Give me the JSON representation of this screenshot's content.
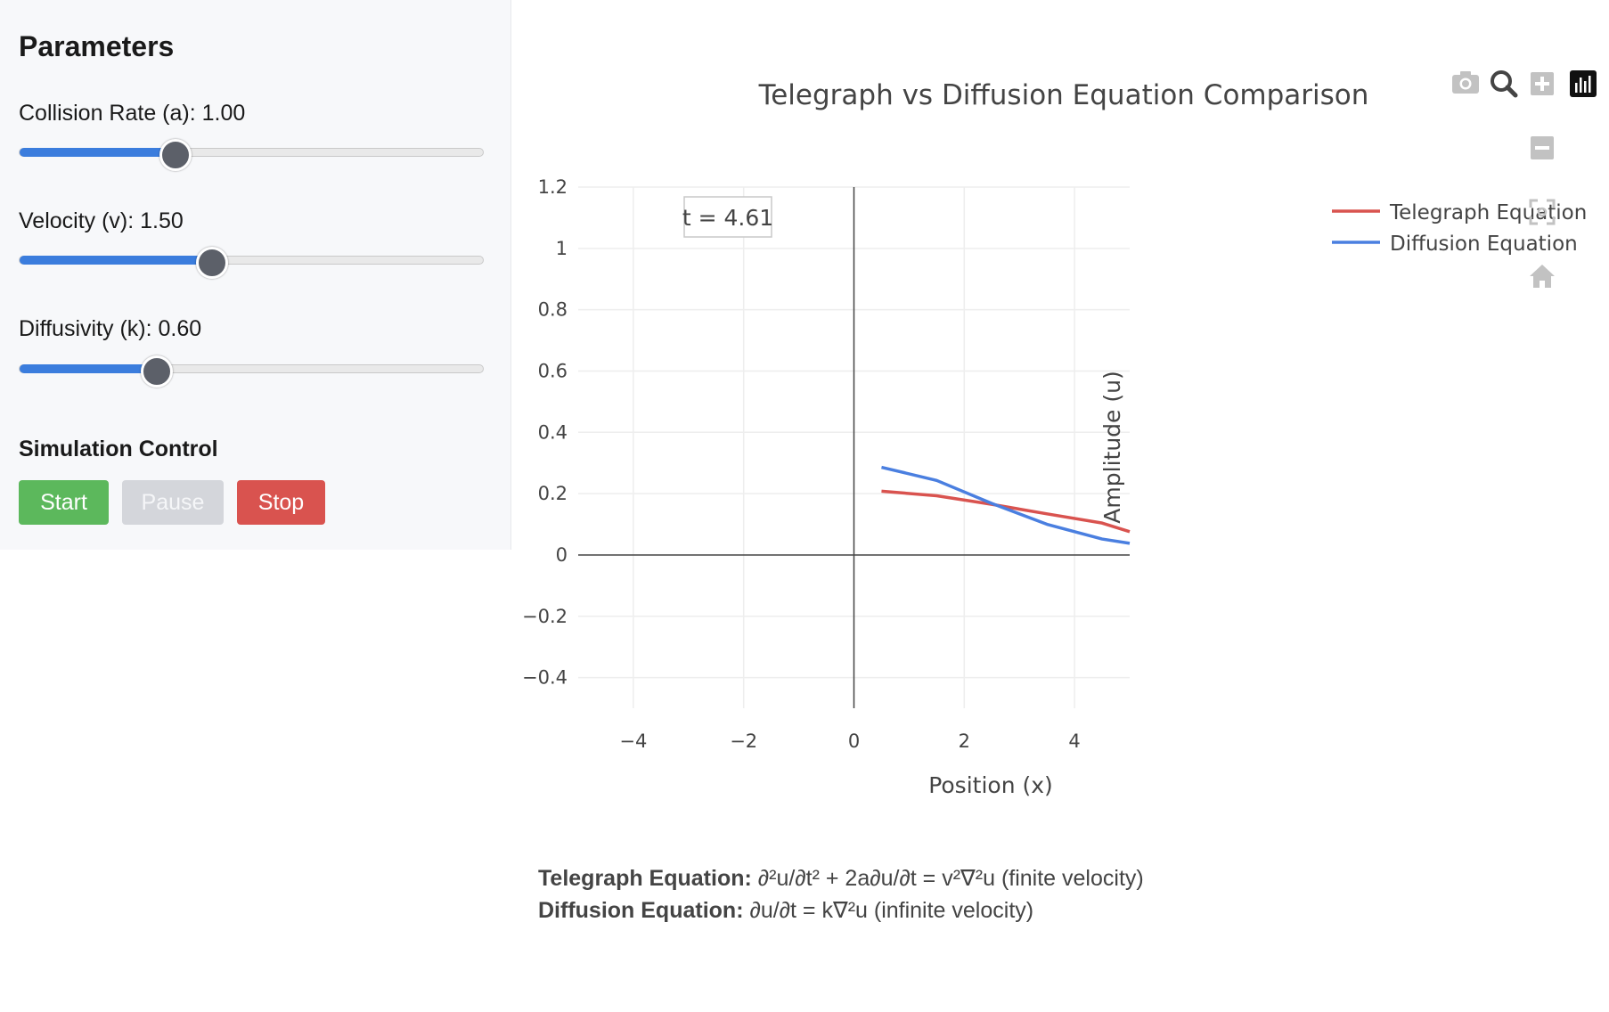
{
  "sidebar": {
    "title": "Parameters",
    "params": [
      {
        "label": "Collision Rate (a): 1.00",
        "level": 0.33
      },
      {
        "label": "Velocity (v): 1.50",
        "level": 0.41
      },
      {
        "label": "Diffusivity (k): 0.60",
        "level": 0.29
      }
    ],
    "control_title": "Simulation Control",
    "buttons": {
      "start": "Start",
      "pause": "Pause",
      "stop": "Stop"
    }
  },
  "colors": {
    "accent": "#3b7ddd",
    "start": "#5cb85c",
    "stop": "#d9534f",
    "telegraph": "#d9534f",
    "diffusion": "#4a7fe0"
  },
  "modebar_icons": [
    "camera-icon",
    "zoom-icon",
    "zoom-in-icon",
    "zoom-out-icon",
    "autoscale-icon",
    "home-icon",
    "plotly-logo-icon"
  ],
  "chart_data": {
    "type": "line",
    "title": "Telegraph vs Diffusion Equation Comparison",
    "xlabel": "Position (x)",
    "ylabel": "Amplitude (u)",
    "xlim": [
      -5,
      5
    ],
    "ylim": [
      -0.5,
      1.2
    ],
    "xticks": [
      -4,
      -2,
      0,
      2,
      4
    ],
    "xtick_labels": [
      "−4",
      "−2",
      "0",
      "2",
      "4"
    ],
    "yticks": [
      -0.4,
      -0.2,
      0,
      0.2,
      0.4,
      0.6,
      0.8,
      1,
      1.2
    ],
    "ytick_labels": [
      "−0.4",
      "−0.2",
      "0",
      "0.2",
      "0.4",
      "0.6",
      "0.8",
      "1",
      "1.2"
    ],
    "grid": true,
    "legend_position": "top-right",
    "annotation": "t = 4.61",
    "series": [
      {
        "name": "Telegraph Equation",
        "x": [
          0.5,
          1.5,
          2.5,
          3.5,
          4.5,
          5
        ],
        "y": [
          0.208,
          0.193,
          0.165,
          0.134,
          0.104,
          0.076
        ]
      },
      {
        "name": "Diffusion Equation",
        "x": [
          0.5,
          1.5,
          2.5,
          3.5,
          4.5,
          5
        ],
        "y": [
          0.286,
          0.243,
          0.168,
          0.1,
          0.052,
          0.038
        ]
      }
    ]
  },
  "equations": {
    "telegraph_label": "Telegraph Equation:",
    "telegraph_text": " ∂²u/∂t² + 2a∂u/∂t = v²∇²u (finite velocity)",
    "diffusion_label": "Diffusion Equation:",
    "diffusion_text": " ∂u/∂t = k∇²u (infinite velocity)"
  }
}
